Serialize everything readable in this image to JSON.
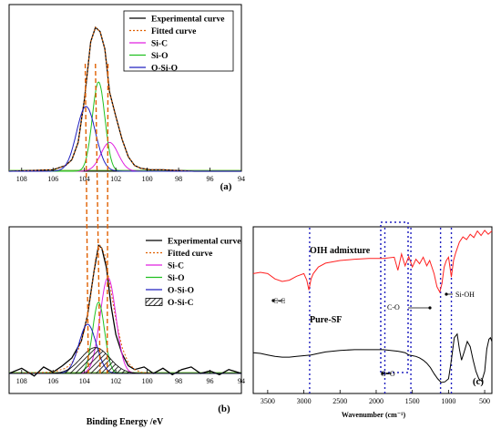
{
  "panels": {
    "a": {
      "label": "(a)"
    },
    "b": {
      "label": "(b)"
    },
    "c": {
      "label": "(c)"
    }
  },
  "chart_data": [
    {
      "id": "a",
      "type": "line",
      "panel_label": "(a)",
      "xlim": [
        108.8,
        94
      ],
      "x_reversed": true,
      "xticks": [
        108,
        106,
        104,
        102,
        100,
        98,
        96,
        94
      ],
      "xlabel": "",
      "ylabel": "",
      "legend": [
        "Experimental curve",
        "Fitted curve",
        "Si-C",
        "Si-O",
        "O-Si-O"
      ],
      "legend_position": "top-right",
      "series": [
        {
          "name": "Experimental curve",
          "color": "#000000",
          "style": "solid",
          "x": [
            108.8,
            106,
            105.2,
            104.8,
            104.4,
            104,
            103.6,
            103.3,
            103,
            102.7,
            102.4,
            102,
            101.6,
            101.2,
            100.8,
            100.4,
            99.8,
            99,
            97,
            94
          ],
          "y": [
            0,
            0.01,
            0.04,
            0.08,
            0.2,
            0.5,
            0.9,
            1.0,
            0.97,
            0.85,
            0.55,
            0.38,
            0.22,
            0.1,
            0.04,
            0.02,
            0.01,
            0.01,
            0.0,
            0.0
          ]
        },
        {
          "name": "Fitted curve",
          "color": "#e06000",
          "style": "dotted",
          "x": [
            108.8,
            106,
            105.2,
            104.8,
            104.4,
            104,
            103.6,
            103.3,
            103,
            102.7,
            102.4,
            102,
            101.6,
            101.2,
            100.8,
            100.4,
            99.8,
            99,
            97,
            94
          ],
          "y": [
            0,
            0.01,
            0.04,
            0.08,
            0.2,
            0.5,
            0.9,
            1.0,
            0.97,
            0.85,
            0.55,
            0.38,
            0.22,
            0.1,
            0.04,
            0.02,
            0.01,
            0.01,
            0.0,
            0.0
          ]
        },
        {
          "name": "Si-C",
          "color": "#e020e0",
          "style": "solid",
          "peak": {
            "center": 102.4,
            "height": 0.2,
            "width": 0.55
          }
        },
        {
          "name": "Si-O",
          "color": "#20c020",
          "style": "solid",
          "peak": {
            "center": 103.1,
            "height": 0.62,
            "width": 0.4
          }
        },
        {
          "name": "O-Si-O",
          "color": "#2020c0",
          "style": "solid",
          "peak": {
            "center": 103.9,
            "height": 0.45,
            "width": 0.6
          }
        }
      ]
    },
    {
      "id": "b",
      "type": "line",
      "panel_label": "(b)",
      "xlim": [
        108.8,
        94
      ],
      "x_reversed": true,
      "xticks": [
        108,
        106,
        104,
        102,
        100,
        98,
        96,
        94
      ],
      "xlabel": "Binding Energy /eV",
      "ylabel": "",
      "legend": [
        "Experimental curve",
        "Fitted curve",
        "Si-C",
        "Si-O",
        "O-Si-O",
        "O-Si-C"
      ],
      "legend_position": "top-right",
      "series": [
        {
          "name": "Experimental curve",
          "color": "#000000",
          "style": "solid",
          "x": [
            108.8,
            108,
            107.2,
            106.6,
            106,
            105.4,
            104.8,
            104.2,
            103.8,
            103.4,
            103.1,
            102.9,
            102.6,
            102.3,
            102,
            101.6,
            101.2,
            100.8,
            100.2,
            99.6,
            99,
            98.4,
            97.8,
            97.2,
            96.6,
            96,
            95.4,
            94.8,
            94
          ],
          "y": [
            0.0,
            0.04,
            -0.02,
            0.05,
            0.01,
            0.06,
            0.12,
            0.25,
            0.45,
            0.78,
            0.99,
            0.97,
            0.82,
            0.52,
            0.3,
            0.15,
            0.06,
            0.03,
            0.05,
            0.0,
            0.04,
            -0.01,
            0.03,
            0.05,
            0.0,
            0.02,
            -0.01,
            0.03,
            0.0
          ]
        },
        {
          "name": "Fitted curve",
          "color": "#e06000",
          "style": "dotted",
          "x": [
            108.8,
            106,
            105.2,
            104.8,
            104.4,
            104,
            103.6,
            103.3,
            103,
            102.7,
            102.4,
            102,
            101.6,
            101.2,
            100.8,
            100.4,
            99.6,
            98,
            94
          ],
          "y": [
            0,
            0.01,
            0.04,
            0.08,
            0.18,
            0.33,
            0.6,
            0.88,
            0.99,
            0.92,
            0.7,
            0.42,
            0.2,
            0.08,
            0.03,
            0.01,
            0.0,
            0.0,
            0.0
          ]
        },
        {
          "name": "Si-C",
          "color": "#e020e0",
          "style": "solid",
          "peak": {
            "center": 102.5,
            "height": 0.74,
            "width": 0.5
          }
        },
        {
          "name": "Si-O",
          "color": "#20c020",
          "style": "solid",
          "peak": {
            "center": 103.1,
            "height": 0.55,
            "width": 0.38
          }
        },
        {
          "name": "O-Si-O",
          "color": "#2020c0",
          "style": "solid",
          "peak": {
            "center": 103.8,
            "height": 0.38,
            "width": 0.55
          }
        },
        {
          "name": "O-Si-C",
          "color": "#000000",
          "style": "hatched",
          "peak": {
            "center": 103.3,
            "height": 0.2,
            "width": 0.9
          }
        }
      ]
    },
    {
      "id": "c",
      "type": "line",
      "panel_label": "(c)",
      "xlim": [
        3700,
        400
      ],
      "x_reversed": true,
      "xticks": [
        3500,
        3000,
        2500,
        2000,
        1500,
        1000,
        500
      ],
      "xlabel": "Wavenumber (cm⁻¹)",
      "ylabel": "",
      "series": [
        {
          "name": "OIH admixture",
          "color": "#ff2020",
          "style": "solid",
          "x": [
            3700,
            3600,
            3500,
            3400,
            3300,
            3200,
            3100,
            3000,
            2960,
            2930,
            2900,
            2870,
            2800,
            2700,
            2500,
            2300,
            2100,
            1900,
            1750,
            1700,
            1650,
            1600,
            1550,
            1500,
            1450,
            1400,
            1350,
            1300,
            1260,
            1200,
            1160,
            1120,
            1090,
            1060,
            1030,
            1000,
            960,
            930,
            900,
            850,
            800,
            750,
            700,
            650,
            600,
            550,
            500,
            450,
            400
          ],
          "y": [
            0.3,
            0.32,
            0.3,
            0.22,
            0.18,
            0.2,
            0.26,
            0.3,
            0.2,
            0.05,
            0.22,
            0.3,
            0.4,
            0.46,
            0.5,
            0.52,
            0.53,
            0.53,
            0.55,
            0.35,
            0.6,
            0.42,
            0.56,
            0.4,
            0.52,
            0.45,
            0.55,
            0.42,
            0.5,
            0.3,
            0.1,
            0.02,
            0.15,
            0.4,
            0.5,
            0.55,
            0.25,
            0.5,
            0.62,
            0.78,
            0.86,
            0.82,
            0.9,
            0.85,
            0.95,
            0.88,
            0.96,
            0.9,
            0.95
          ]
        },
        {
          "name": "Pure-SF",
          "color": "#000000",
          "style": "solid",
          "x": [
            3700,
            3600,
            3500,
            3400,
            3300,
            3200,
            3100,
            3000,
            2900,
            2800,
            2700,
            2500,
            2300,
            2100,
            1900,
            1800,
            1700,
            1650,
            1600,
            1550,
            1500,
            1450,
            1400,
            1350,
            1300,
            1250,
            1200,
            1150,
            1100,
            1050,
            1000,
            960,
            920,
            880,
            850,
            820,
            780,
            740,
            700,
            660,
            620,
            580,
            540,
            500,
            470,
            440,
            420,
            400
          ],
          "y": [
            0.4,
            0.39,
            0.37,
            0.35,
            0.34,
            0.34,
            0.35,
            0.36,
            0.37,
            0.39,
            0.41,
            0.43,
            0.44,
            0.44,
            0.44,
            0.43,
            0.42,
            0.41,
            0.4,
            0.37,
            0.36,
            0.35,
            0.33,
            0.3,
            0.26,
            0.2,
            0.12,
            0.05,
            0.0,
            0.01,
            0.05,
            0.3,
            0.6,
            0.65,
            0.45,
            0.3,
            0.42,
            0.55,
            0.48,
            0.3,
            0.15,
            0.05,
            0.02,
            0.15,
            0.45,
            0.58,
            0.6,
            0.55
          ]
        }
      ],
      "annotations": [
        "OIH admixture",
        "Pure-SF",
        "C-C",
        "C-O",
        "Si-OH",
        "C=O"
      ],
      "marker_lines_x": [
        2920,
        1880,
        1520,
        1110,
        960
      ]
    }
  ]
}
